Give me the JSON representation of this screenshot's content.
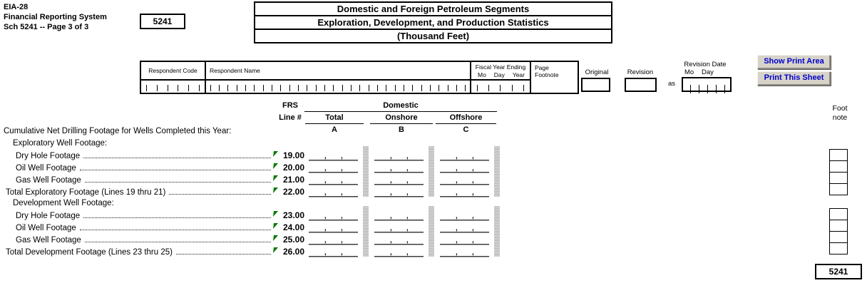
{
  "page": {
    "form_id": "EIA-28",
    "system_name": "Financial Reporting System",
    "sheet_label": "Sch 5241 -- Page 3 of 3",
    "schedule_code_top": "5241",
    "schedule_code_bottom": "5241",
    "title_line1": "Domestic and Foreign Petroleum Segments",
    "title_line2": "Exploration, Development, and Production Statistics",
    "title_line3": "(Thousand Feet)"
  },
  "respondent_header": {
    "code_label": "Respondent Code",
    "name_label": "Respondent Name",
    "fiscal_year_label": "Fiscal Year Ending",
    "fiscal_mo": "Mo",
    "fiscal_day": "Day",
    "fiscal_yr": "Year",
    "page_footnote_line1": "Page",
    "page_footnote_line2": "Footnote",
    "original_label": "Original",
    "revision_label": "Revision",
    "as_label": "as",
    "revision_date_label": "Revision Date",
    "revision_mo": "Mo",
    "revision_day": "Day"
  },
  "toolbar": {
    "show_print_area": "Show Print Area",
    "print_this_sheet": "Print This Sheet"
  },
  "table": {
    "frs_label": "FRS",
    "line_label": "Line #",
    "domestic_label": "Domestic",
    "col_total": "Total",
    "col_onshore": "Onshore",
    "col_offshore": "Offshore",
    "col_letter_a": "A",
    "col_letter_b": "B",
    "col_letter_c": "C",
    "section_title": "Cumulative Net Drilling Footage for Wells Completed this Year:",
    "group1_title": "Exploratory Well Footage:",
    "group2_title": "Development Well Footage:",
    "comma": ",",
    "rows": [
      {
        "label": "Dry Hole Footage",
        "line": "19.00"
      },
      {
        "label": "Oil Well Footage",
        "line": "20.00"
      },
      {
        "label": "Gas Well Footage",
        "line": "21.00"
      },
      {
        "label": "Total Exploratory Footage (Lines 19 thru 21)",
        "line": "22.00"
      },
      {
        "label": "Dry Hole Footage",
        "line": "23.00"
      },
      {
        "label": "Oil Well Footage",
        "line": "24.00"
      },
      {
        "label": "Gas Well Footage",
        "line": "25.00"
      },
      {
        "label": "Total Development Footage (Lines 23 thru 25)",
        "line": "26.00"
      }
    ]
  },
  "footnote": {
    "label_line1": "Foot",
    "label_line2": "note"
  },
  "colors": {
    "button_text_blue": "#0000cc",
    "flag_green": "#007a00",
    "separator_gray": "#c9c9c9"
  }
}
